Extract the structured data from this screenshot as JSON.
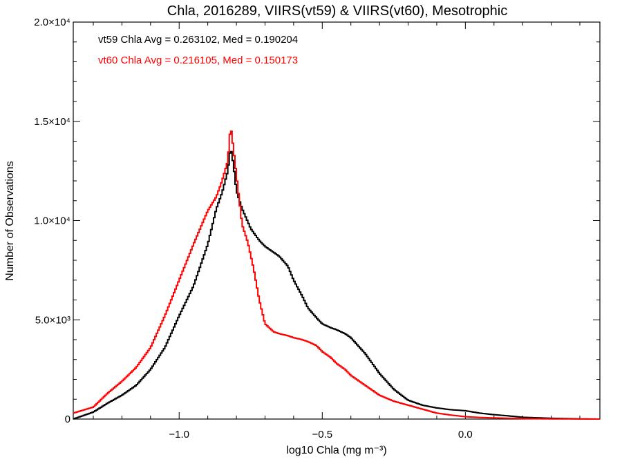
{
  "chart_data": {
    "type": "line",
    "title": "Chla, 2016289, VIIRS(vt59) & VIIRS(vt60), Mesotrophic",
    "xlabel": "log10 Chla (mg m⁻³)",
    "ylabel": "Number of Observations",
    "xlim": [
      -1.37,
      0.47
    ],
    "ylim": [
      0,
      20000
    ],
    "x_ticks": [
      {
        "value": -1.0,
        "label": "−1.0"
      },
      {
        "value": -0.5,
        "label": "−0.5"
      },
      {
        "value": 0.0,
        "label": "0.0"
      }
    ],
    "y_ticks": [
      {
        "value": 0,
        "label": "0"
      },
      {
        "value": 5000,
        "label": "5.0×10³"
      },
      {
        "value": 10000,
        "label": "1.0×10⁴"
      },
      {
        "value": 15000,
        "label": "1.5×10⁴"
      },
      {
        "value": 20000,
        "label": "2.0×10⁴"
      }
    ],
    "annotations": [
      {
        "text": "vt59 Chla Avg = 0.263102, Med = 0.190204",
        "color": "#000000"
      },
      {
        "text": "vt60 Chla Avg = 0.216105, Med = 0.150173",
        "color": "#ff0000"
      }
    ],
    "step": "histogram",
    "series": [
      {
        "color": "#000000",
        "x": [
          -1.37,
          -1.3,
          -1.25,
          -1.2,
          -1.15,
          -1.1,
          -1.05,
          -1.0,
          -0.95,
          -0.9,
          -0.87,
          -0.85,
          -0.83,
          -0.82,
          -0.81,
          -0.8,
          -0.78,
          -0.75,
          -0.72,
          -0.7,
          -0.67,
          -0.65,
          -0.62,
          -0.6,
          -0.57,
          -0.55,
          -0.52,
          -0.5,
          -0.47,
          -0.45,
          -0.42,
          -0.4,
          -0.35,
          -0.3,
          -0.25,
          -0.2,
          -0.15,
          -0.1,
          -0.05,
          0.0,
          0.05,
          0.1,
          0.15,
          0.2,
          0.3,
          0.4,
          0.47
        ],
        "y": [
          0,
          350,
          800,
          1200,
          1700,
          2500,
          3600,
          5200,
          6700,
          8800,
          10600,
          11400,
          12500,
          13700,
          12800,
          11500,
          10600,
          9600,
          9000,
          8700,
          8400,
          8200,
          7700,
          7000,
          6200,
          5600,
          5100,
          4800,
          4600,
          4500,
          4300,
          4100,
          3300,
          2300,
          1500,
          950,
          700,
          560,
          470,
          420,
          300,
          220,
          160,
          90,
          40,
          10,
          0
        ]
      },
      {
        "color": "#ff0000",
        "x": [
          -1.37,
          -1.3,
          -1.25,
          -1.2,
          -1.15,
          -1.1,
          -1.05,
          -1.0,
          -0.95,
          -0.9,
          -0.87,
          -0.85,
          -0.83,
          -0.82,
          -0.81,
          -0.8,
          -0.78,
          -0.76,
          -0.74,
          -0.72,
          -0.7,
          -0.67,
          -0.65,
          -0.62,
          -0.6,
          -0.57,
          -0.55,
          -0.52,
          -0.5,
          -0.47,
          -0.45,
          -0.42,
          -0.4,
          -0.35,
          -0.3,
          -0.25,
          -0.2,
          -0.15,
          -0.1,
          -0.05,
          0.0,
          0.05,
          0.1,
          0.15,
          0.2,
          0.3,
          0.4,
          0.47
        ],
        "y": [
          300,
          600,
          1300,
          1900,
          2600,
          3600,
          5200,
          7000,
          8800,
          10500,
          11200,
          12000,
          13000,
          14800,
          13600,
          12300,
          9800,
          8900,
          7600,
          6000,
          4800,
          4400,
          4300,
          4200,
          4100,
          4000,
          3900,
          3700,
          3400,
          3100,
          2800,
          2500,
          2200,
          1700,
          1200,
          900,
          700,
          500,
          300,
          200,
          120,
          80,
          60,
          40,
          25,
          10,
          5,
          0
        ]
      }
    ]
  }
}
